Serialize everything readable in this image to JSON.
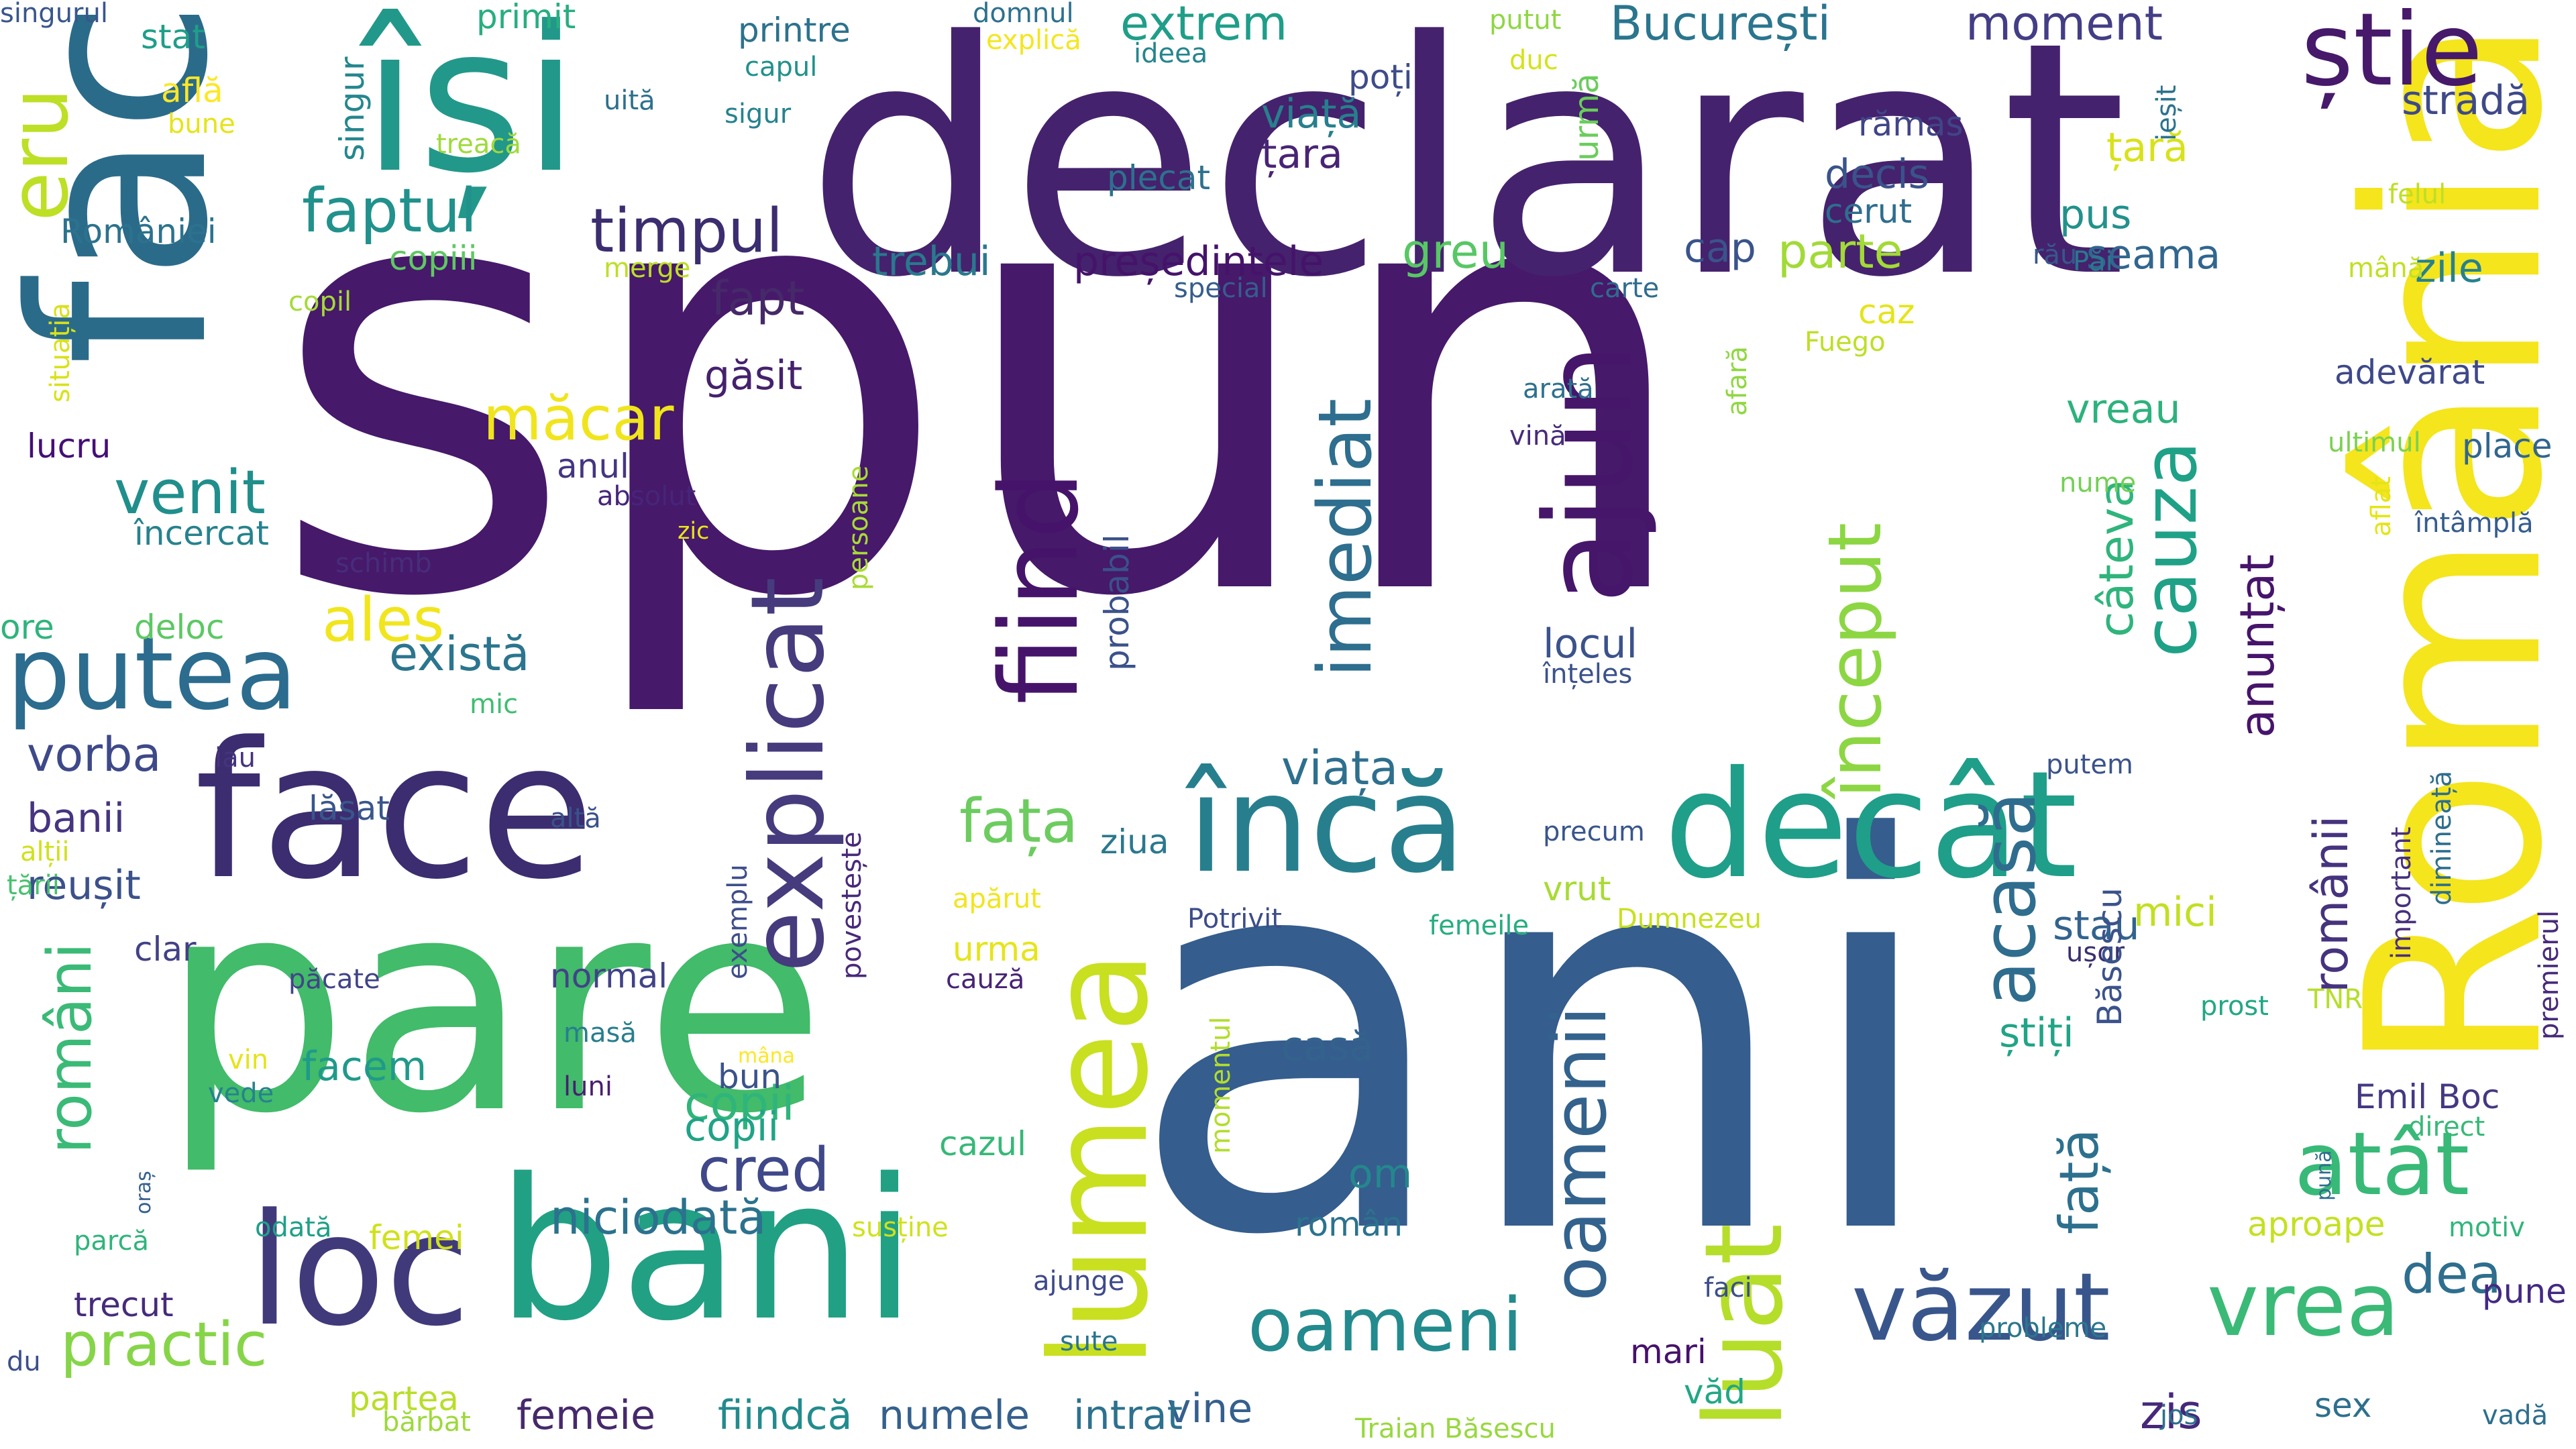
{
  "words": [
    {
      "text": "spun",
      "color": "#46196a"
    },
    {
      "text": "ani",
      "color": "#355d8d"
    },
    {
      "text": "declarat",
      "color": "#45226d"
    },
    {
      "text": "fac",
      "color": "#2b6b8a"
    },
    {
      "text": "pare",
      "color": "#42bb6a"
    },
    {
      "text": "România",
      "color": "#f4e51d"
    },
    {
      "text": "își",
      "color": "#22988a"
    },
    {
      "text": "face",
      "color": "#3b2d6f"
    },
    {
      "text": "bani",
      "color": "#21a084"
    },
    {
      "text": "lumea",
      "color": "#c8e020"
    },
    {
      "text": "decât",
      "color": "#1f9e89"
    },
    {
      "text": "încă",
      "color": "#277f8e"
    },
    {
      "text": "loc",
      "color": "#403a7b"
    },
    {
      "text": "ajun",
      "color": "#46166a"
    },
    {
      "text": "fiind",
      "color": "#45146a"
    },
    {
      "text": "explicat",
      "color": "#463b7d"
    },
    {
      "text": "luat",
      "color": "#b5de2b"
    },
    {
      "text": "văzut",
      "color": "#39568c"
    },
    {
      "text": "oameni",
      "color": "#238a8d"
    },
    {
      "text": "putea",
      "color": "#2c6c8e"
    },
    {
      "text": "vrea",
      "color": "#3aba76"
    },
    {
      "text": "imediat",
      "color": "#2e6e8e"
    },
    {
      "text": "început",
      "color": "#8dd643"
    },
    {
      "text": "acasă",
      "color": "#2f6d8e"
    },
    {
      "text": "știe",
      "color": "#46196a"
    },
    {
      "text": "atât",
      "color": "#38b977"
    },
    {
      "text": "cauza",
      "color": "#1fa187"
    },
    {
      "text": "oamenii",
      "color": "#33628d"
    },
    {
      "text": "practic",
      "color": "#86d549"
    },
    {
      "text": "cred",
      "color": "#3f4889"
    },
    {
      "text": "fapt",
      "color": "#462969"
    },
    {
      "text": "timpul",
      "color": "#3b2d6f"
    },
    {
      "text": "faptul",
      "color": "#21918c"
    },
    {
      "text": "venit",
      "color": "#208f8c"
    },
    {
      "text": "ales",
      "color": "#f1e51d"
    },
    {
      "text": "măcar",
      "color": "#f0e51d"
    },
    {
      "text": "există",
      "color": "#2b758e"
    },
    {
      "text": "niciodată",
      "color": "#2c718e"
    },
    {
      "text": "fața",
      "color": "#6ccc5f"
    },
    {
      "text": "viața",
      "color": "#2e6f8e"
    },
    {
      "text": "copii",
      "color": "#2fb47c"
    },
    {
      "text": "vorba",
      "color": "#3e4989"
    },
    {
      "text": "români",
      "color": "#3aba76"
    },
    {
      "text": "românii",
      "color": "#46337e"
    },
    {
      "text": "anunțat",
      "color": "#46146b"
    },
    {
      "text": "câteva",
      "color": "#2fb47c"
    },
    {
      "text": "față",
      "color": "#2d708e"
    },
    {
      "text": "parte",
      "color": "#a2da37"
    },
    {
      "text": "București",
      "color": "#2b758e"
    },
    {
      "text": "moment",
      "color": "#433e85"
    },
    {
      "text": "trebui",
      "color": "#2a788e"
    },
    {
      "text": "președintele",
      "color": "#45136a"
    },
    {
      "text": "extrem",
      "color": "#1f9e89"
    },
    {
      "text": "viață",
      "color": "#277f8e"
    },
    {
      "text": "țara",
      "color": "#482475"
    },
    {
      "text": "greu",
      "color": "#58c765"
    },
    {
      "text": "cap",
      "color": "#3a538b"
    },
    {
      "text": "seama",
      "color": "#31668e"
    },
    {
      "text": "pus",
      "color": "#22918c"
    },
    {
      "text": "țară",
      "color": "#d8e219"
    },
    {
      "text": "zile",
      "color": "#26818e"
    },
    {
      "text": "stradă",
      "color": "#3e4989"
    },
    {
      "text": "eru",
      "color": "#bddf26"
    },
    {
      "text": "vreau",
      "color": "#2db27d"
    },
    {
      "text": "găsit",
      "color": "#45216d"
    },
    {
      "text": "banii",
      "color": "#463480"
    },
    {
      "text": "reușit",
      "color": "#3b518b"
    },
    {
      "text": "casă",
      "color": "#33638d"
    },
    {
      "text": "om",
      "color": "#24878e"
    },
    {
      "text": "român",
      "color": "#2c728e"
    },
    {
      "text": "dea",
      "color": "#2e6e8e"
    },
    {
      "text": "mici",
      "color": "#c3df21"
    },
    {
      "text": "zis",
      "color": "#46287a"
    },
    {
      "text": "vine",
      "color": "#355f8d"
    },
    {
      "text": "trecut",
      "color": "#462b7a"
    },
    {
      "text": "locul",
      "color": "#3b528b"
    },
    {
      "text": "înțeles",
      "color": "#3b528b"
    },
    {
      "text": "probabil",
      "color": "#3b518b"
    },
    {
      "text": "anul",
      "color": "#453581"
    },
    {
      "text": "absolut",
      "color": "#46257a"
    },
    {
      "text": "persoane",
      "color": "#a8db34"
    },
    {
      "text": "zic",
      "color": "#ebe51a"
    },
    {
      "text": "schimb",
      "color": "#472d7b"
    },
    {
      "text": "deloc",
      "color": "#5cc863"
    },
    {
      "text": "ore",
      "color": "#2fb47c"
    },
    {
      "text": "mic",
      "color": "#40bd72"
    },
    {
      "text": "iau",
      "color": "#46337e"
    },
    {
      "text": "lăsat",
      "color": "#39568c"
    },
    {
      "text": "altă",
      "color": "#3b518b"
    },
    {
      "text": "alții",
      "color": "#d0e11c"
    },
    {
      "text": "țării",
      "color": "#48c16e"
    },
    {
      "text": "clar",
      "color": "#424186"
    },
    {
      "text": "păcate",
      "color": "#414487"
    },
    {
      "text": "normal",
      "color": "#414387"
    },
    {
      "text": "exemplu",
      "color": "#3d4e8a"
    },
    {
      "text": "povestește",
      "color": "#482979"
    },
    {
      "text": "mâna",
      "color": "#fde725"
    },
    {
      "text": "apărut",
      "color": "#f1e51d"
    },
    {
      "text": "urma",
      "color": "#e7e419"
    },
    {
      "text": "cauză",
      "color": "#482475"
    },
    {
      "text": "ziua",
      "color": "#2a788e"
    },
    {
      "text": "Potrivit",
      "color": "#3d4d8a"
    },
    {
      "text": "vrut",
      "color": "#a8db34"
    },
    {
      "text": "femeile",
      "color": "#27ad81"
    },
    {
      "text": "Dumnezeu",
      "color": "#c8e020"
    },
    {
      "text": "precum",
      "color": "#39558c"
    },
    {
      "text": "stau",
      "color": "#33638d"
    },
    {
      "text": "ușor",
      "color": "#3b2f70"
    },
    {
      "text": "Băsescu",
      "color": "#3b528b"
    },
    {
      "text": "știți",
      "color": "#20a486"
    },
    {
      "text": "momentul",
      "color": "#b2dd2d"
    },
    {
      "text": "facem",
      "color": "#1f9a8a"
    },
    {
      "text": "masă",
      "color": "#277e8e"
    },
    {
      "text": "luni",
      "color": "#481f70"
    },
    {
      "text": "vin",
      "color": "#e5e419"
    },
    {
      "text": "vede",
      "color": "#26838e"
    },
    {
      "text": "bun",
      "color": "#3b528b"
    },
    {
      "text": "copii",
      "color": "#20a386"
    },
    {
      "text": "cazul",
      "color": "#37b878"
    },
    {
      "text": "femei",
      "color": "#d0e11c"
    },
    {
      "text": "susține",
      "color": "#d0e11c"
    },
    {
      "text": "ajunge",
      "color": "#3e4a89"
    },
    {
      "text": "sute",
      "color": "#2b748e"
    },
    {
      "text": "intrat",
      "color": "#2d718e"
    },
    {
      "text": "numele",
      "color": "#35608d"
    },
    {
      "text": "fiindcă",
      "color": "#228b8d"
    },
    {
      "text": "femeie",
      "color": "#46296c"
    },
    {
      "text": "partea",
      "color": "#b8de29"
    },
    {
      "text": "bărbat",
      "color": "#9dd93b"
    },
    {
      "text": "du",
      "color": "#3c4f8a"
    },
    {
      "text": "parcă",
      "color": "#2fb47c"
    },
    {
      "text": "oraș",
      "color": "#35608d"
    },
    {
      "text": "odată",
      "color": "#1fa088"
    },
    {
      "text": "mari",
      "color": "#46116b"
    },
    {
      "text": "văd",
      "color": "#22a785"
    },
    {
      "text": "faci",
      "color": "#3c4f8a"
    },
    {
      "text": "probleme",
      "color": "#2a778e"
    },
    {
      "text": "jos",
      "color": "#2d708e"
    },
    {
      "text": "sex",
      "color": "#2d708e"
    },
    {
      "text": "vadă",
      "color": "#2e6e8e"
    },
    {
      "text": "pune",
      "color": "#442983"
    },
    {
      "text": "Traian Băsescu",
      "color": "#98d83e"
    },
    {
      "text": "motiv",
      "color": "#31b57b"
    },
    {
      "text": "aproape",
      "color": "#c5e021"
    },
    {
      "text": "Emil Boc",
      "color": "#453882"
    },
    {
      "text": "direct",
      "color": "#38b977"
    },
    {
      "text": "pună",
      "color": "#2e6e8e"
    },
    {
      "text": "TNR",
      "color": "#b5de2b"
    },
    {
      "text": "prost",
      "color": "#22a785"
    },
    {
      "text": "important",
      "color": "#472f7d"
    },
    {
      "text": "dimineață",
      "color": "#2e6e8e"
    },
    {
      "text": "premierul",
      "color": "#472a7a"
    },
    {
      "text": "putem",
      "color": "#3b528b"
    },
    {
      "text": "nume",
      "color": "#74d055"
    },
    {
      "text": "aflat",
      "color": "#e5e419"
    },
    {
      "text": "ultimul",
      "color": "#7ad151"
    },
    {
      "text": "adevărat",
      "color": "#3e4989"
    },
    {
      "text": "place",
      "color": "#31668e"
    },
    {
      "text": "întâmplă",
      "color": "#365c8d"
    },
    {
      "text": "arată",
      "color": "#2d708e"
    },
    {
      "text": "vină",
      "color": "#472c7a"
    },
    {
      "text": "afară",
      "color": "#90d743"
    },
    {
      "text": "Fuego",
      "color": "#bddf26"
    },
    {
      "text": "caz",
      "color": "#e5e419"
    },
    {
      "text": "carte",
      "color": "#2f6c8e"
    },
    {
      "text": "special",
      "color": "#365d8d"
    },
    {
      "text": "Păi",
      "color": "#2a788e"
    },
    {
      "text": "rău",
      "color": "#38578c"
    },
    {
      "text": "mână",
      "color": "#c2df23"
    },
    {
      "text": "decis",
      "color": "#3a538b"
    },
    {
      "text": "cerut",
      "color": "#2e6e8e"
    },
    {
      "text": "rămas",
      "color": "#404588"
    },
    {
      "text": "ieșit",
      "color": "#2c728e"
    },
    {
      "text": "felul",
      "color": "#bddf26"
    },
    {
      "text": "urmă",
      "color": "#69cd5b"
    },
    {
      "text": "putut",
      "color": "#8fd744"
    },
    {
      "text": "duc",
      "color": "#d5e21a"
    },
    {
      "text": "poți",
      "color": "#3e4c8a"
    },
    {
      "text": "plecat",
      "color": "#2c718e"
    },
    {
      "text": "ideea",
      "color": "#25858e"
    },
    {
      "text": "domnul",
      "color": "#2d718e"
    },
    {
      "text": "explică",
      "color": "#f4e61e"
    },
    {
      "text": "sigur",
      "color": "#26828e"
    },
    {
      "text": "capul",
      "color": "#21918c"
    },
    {
      "text": "printre",
      "color": "#2c728e"
    },
    {
      "text": "primit",
      "color": "#28ae80"
    },
    {
      "text": "uită",
      "color": "#2c718e"
    },
    {
      "text": "treacă",
      "color": "#9fda3a"
    },
    {
      "text": "singur",
      "color": "#24878e"
    },
    {
      "text": "stat",
      "color": "#1f9e89"
    },
    {
      "text": "află",
      "color": "#fde725"
    },
    {
      "text": "bune",
      "color": "#e5e419"
    },
    {
      "text": "singurul",
      "color": "#39568c"
    },
    {
      "text": "României",
      "color": "#2c728e"
    },
    {
      "text": "copiii",
      "color": "#5ec962"
    },
    {
      "text": "merge",
      "color": "#bddf26"
    },
    {
      "text": "copil",
      "color": "#a5db36"
    },
    {
      "text": "situația",
      "color": "#d8e219"
    },
    {
      "text": "lucru",
      "color": "#440f76"
    },
    {
      "text": "încercat",
      "color": "#26828e"
    }
  ]
}
